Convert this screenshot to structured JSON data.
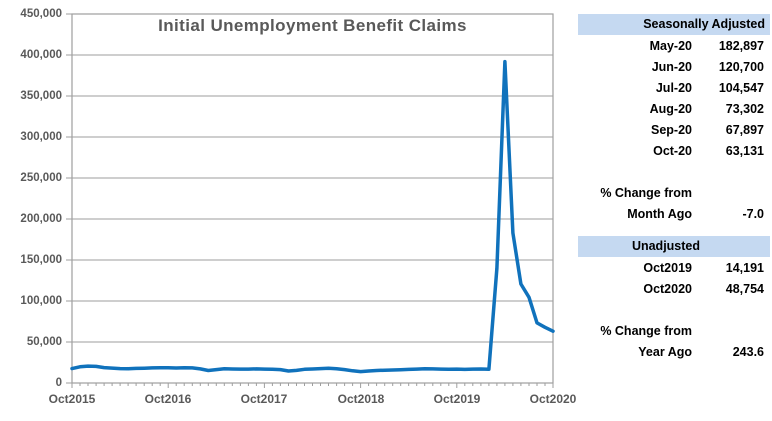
{
  "chart": {
    "title": "Initial Unemployment Benefit Claims",
    "y_ticks": [
      "0",
      "50,000",
      "100,000",
      "150,000",
      "200,000",
      "250,000",
      "300,000",
      "350,000",
      "400,000",
      "450,000"
    ],
    "x_ticks": [
      "Oct2015",
      "Oct2016",
      "Oct2017",
      "Oct2018",
      "Oct2019",
      "Oct2020"
    ],
    "line_color": "#1072BC",
    "grid_color": "#9E9E9E",
    "axis_text_color": "#595959"
  },
  "chart_data": {
    "type": "line",
    "title": "Initial Unemployment Benefit Claims",
    "xlabel": "",
    "ylabel": "",
    "ylim": [
      0,
      450000
    ],
    "y_tick_step": 50000,
    "grid": true,
    "legend": false,
    "x_tick_labels": [
      "Oct2015",
      "Oct2016",
      "Oct2017",
      "Oct2018",
      "Oct2019",
      "Oct2020"
    ],
    "x": [
      "Oct-15",
      "Nov-15",
      "Dec-15",
      "Jan-16",
      "Feb-16",
      "Mar-16",
      "Apr-16",
      "May-16",
      "Jun-16",
      "Jul-16",
      "Aug-16",
      "Sep-16",
      "Oct-16",
      "Nov-16",
      "Dec-16",
      "Jan-17",
      "Feb-17",
      "Mar-17",
      "Apr-17",
      "May-17",
      "Jun-17",
      "Jul-17",
      "Aug-17",
      "Sep-17",
      "Oct-17",
      "Nov-17",
      "Dec-17",
      "Jan-18",
      "Feb-18",
      "Mar-18",
      "Apr-18",
      "May-18",
      "Jun-18",
      "Jul-18",
      "Aug-18",
      "Sep-18",
      "Oct-18",
      "Nov-18",
      "Dec-18",
      "Jan-19",
      "Feb-19",
      "Mar-19",
      "Apr-19",
      "May-19",
      "Jun-19",
      "Jul-19",
      "Aug-19",
      "Sep-19",
      "Oct-19",
      "Nov-19",
      "Dec-19",
      "Jan-20",
      "Feb-20",
      "Mar-20",
      "Apr-20",
      "May-20",
      "Jun-20",
      "Jul-20",
      "Aug-20",
      "Sep-20",
      "Oct-20"
    ],
    "series": [
      {
        "name": "Initial Claims (Seasonally Adjusted)",
        "values": [
          17500,
          19800,
          20600,
          20200,
          18800,
          18200,
          17600,
          17400,
          17800,
          18100,
          18400,
          18600,
          18500,
          18300,
          18700,
          18400,
          17200,
          15300,
          16400,
          17300,
          17100,
          16900,
          17000,
          17200,
          16900,
          16700,
          16300,
          14600,
          15400,
          16700,
          17100,
          17600,
          17900,
          17400,
          16300,
          14900,
          13900,
          14600,
          15200,
          15600,
          15900,
          16200,
          16600,
          17000,
          17400,
          17200,
          16900,
          16800,
          17000,
          16600,
          16900,
          17100,
          16800,
          140000,
          392000,
          182897,
          120700,
          104547,
          73302,
          67897,
          63131
        ]
      }
    ]
  },
  "panel": {
    "header_bg": "#C5D9F1",
    "seasonally_adjusted": {
      "header": "Seasonally Adjusted",
      "rows": [
        {
          "label": "May-20",
          "value": "182,897"
        },
        {
          "label": "Jun-20",
          "value": "120,700"
        },
        {
          "label": "Jul-20",
          "value": "104,547"
        },
        {
          "label": "Aug-20",
          "value": "73,302"
        },
        {
          "label": "Sep-20",
          "value": "67,897"
        },
        {
          "label": "Oct-20",
          "value": "63,131"
        }
      ],
      "change_line1": "% Change from",
      "change_line2": "Month Ago",
      "change_value": "-7.0"
    },
    "unadjusted": {
      "header": "Unadjusted",
      "rows": [
        {
          "label": "Oct2019",
          "value": "14,191"
        },
        {
          "label": "Oct2020",
          "value": "48,754"
        }
      ],
      "change_line1": "% Change from",
      "change_line2": "Year Ago",
      "change_value": "243.6"
    }
  }
}
